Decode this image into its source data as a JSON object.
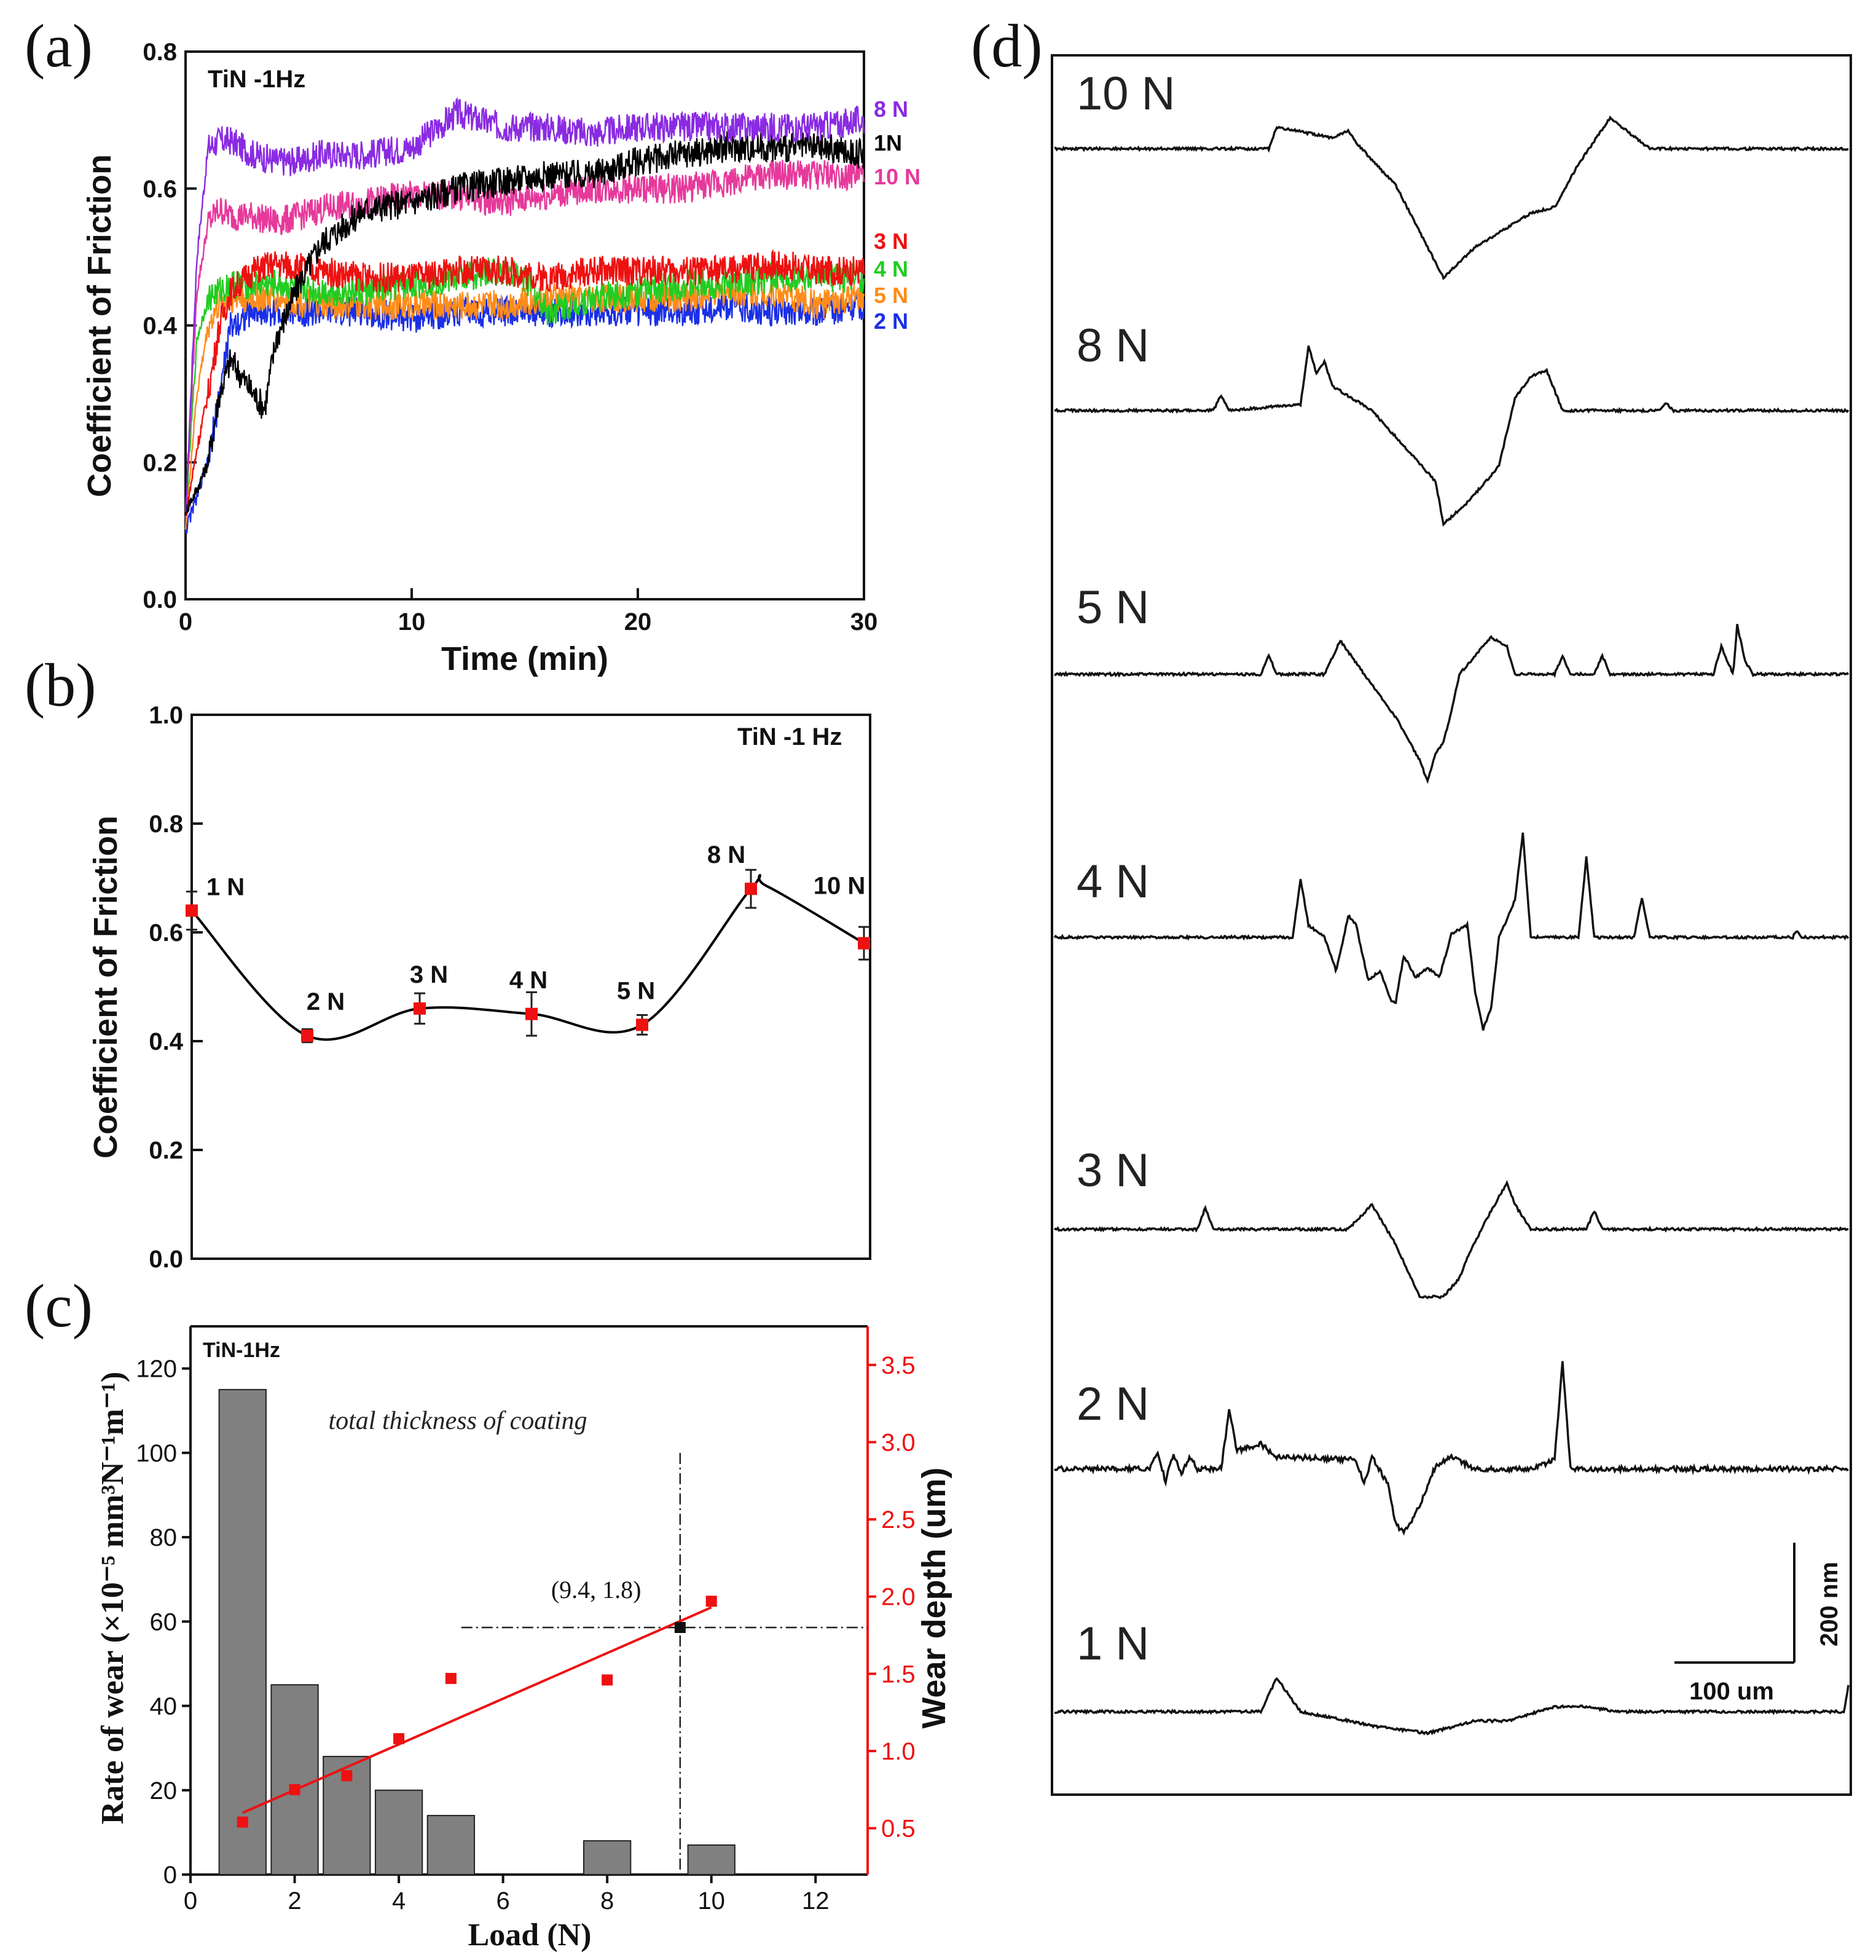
{
  "chart_data": [
    {
      "panel": "(a)",
      "type": "line",
      "tag": "TiN -1Hz",
      "xlabel": "Time (min)",
      "ylabel": "Coefficient of Friction",
      "xlim": [
        0,
        30
      ],
      "ylim": [
        0,
        0.8
      ],
      "xticks": [
        "0",
        "10",
        "20",
        "30"
      ],
      "yticks": [
        "0.0",
        "0.2",
        "0.4",
        "0.6",
        "0.8"
      ],
      "series": [
        {
          "name": "8 N",
          "color": "#8a2be2",
          "t": [
            0,
            0.5,
            1,
            1.5,
            2,
            3,
            4,
            5,
            6,
            8,
            10,
            12,
            14,
            16,
            18,
            20,
            22,
            24,
            26,
            28,
            30
          ],
          "cof": [
            0.12,
            0.5,
            0.66,
            0.67,
            0.67,
            0.65,
            0.64,
            0.64,
            0.65,
            0.65,
            0.66,
            0.71,
            0.69,
            0.69,
            0.68,
            0.69,
            0.69,
            0.69,
            0.69,
            0.69,
            0.7
          ]
        },
        {
          "name": "1N",
          "color": "#000000",
          "t": [
            0,
            0.5,
            1,
            1.5,
            2,
            3,
            3.5,
            4,
            5,
            6,
            8,
            10,
            12,
            14,
            16,
            18,
            20,
            22,
            24,
            26,
            28,
            30
          ],
          "cof": [
            0.13,
            0.16,
            0.2,
            0.3,
            0.35,
            0.3,
            0.28,
            0.38,
            0.46,
            0.52,
            0.57,
            0.58,
            0.6,
            0.61,
            0.62,
            0.62,
            0.64,
            0.65,
            0.66,
            0.66,
            0.66,
            0.65
          ]
        },
        {
          "name": "10 N",
          "color": "#e6399b",
          "t": [
            0,
            0.5,
            1,
            1.5,
            2,
            3,
            4,
            5,
            6,
            8,
            10,
            12,
            14,
            16,
            18,
            20,
            22,
            24,
            26,
            28,
            30
          ],
          "cof": [
            0.12,
            0.45,
            0.55,
            0.57,
            0.56,
            0.56,
            0.55,
            0.56,
            0.57,
            0.58,
            0.59,
            0.59,
            0.58,
            0.59,
            0.6,
            0.6,
            0.6,
            0.61,
            0.62,
            0.62,
            0.62
          ]
        },
        {
          "name": "3 N",
          "color": "#ee1111",
          "t": [
            0,
            0.5,
            1,
            1.5,
            2,
            3,
            4,
            6,
            8,
            10,
            12,
            14,
            16,
            18,
            20,
            22,
            24,
            26,
            28,
            30
          ],
          "cof": [
            0.12,
            0.22,
            0.3,
            0.4,
            0.45,
            0.48,
            0.49,
            0.48,
            0.47,
            0.47,
            0.48,
            0.48,
            0.47,
            0.48,
            0.48,
            0.48,
            0.48,
            0.49,
            0.48,
            0.48
          ]
        },
        {
          "name": "4 N",
          "color": "#22cc22",
          "t": [
            0,
            0.5,
            1,
            1.5,
            2,
            3,
            4,
            6,
            8,
            10,
            12,
            14,
            15,
            16,
            18,
            20,
            22,
            24,
            26,
            28,
            30
          ],
          "cof": [
            0.12,
            0.38,
            0.44,
            0.45,
            0.46,
            0.46,
            0.46,
            0.45,
            0.45,
            0.46,
            0.47,
            0.48,
            0.47,
            0.42,
            0.44,
            0.45,
            0.46,
            0.46,
            0.47,
            0.47,
            0.47
          ]
        },
        {
          "name": "5 N",
          "color": "#ff8c1a",
          "t": [
            0,
            0.5,
            1,
            1.5,
            2,
            3,
            4,
            6,
            8,
            10,
            12,
            14,
            16,
            18,
            20,
            22,
            24,
            26,
            28,
            30
          ],
          "cof": [
            0.11,
            0.3,
            0.4,
            0.43,
            0.44,
            0.44,
            0.44,
            0.43,
            0.43,
            0.43,
            0.43,
            0.43,
            0.44,
            0.44,
            0.44,
            0.44,
            0.45,
            0.45,
            0.43,
            0.44
          ]
        },
        {
          "name": "2 N",
          "color": "#1a2fe6",
          "t": [
            0,
            0.5,
            1,
            1.5,
            2,
            3,
            4,
            6,
            8,
            10,
            12,
            14,
            16,
            18,
            20,
            22,
            24,
            26,
            28,
            30
          ],
          "cof": [
            0.1,
            0.15,
            0.2,
            0.3,
            0.4,
            0.42,
            0.42,
            0.42,
            0.42,
            0.41,
            0.42,
            0.42,
            0.42,
            0.42,
            0.42,
            0.42,
            0.43,
            0.42,
            0.42,
            0.43
          ]
        }
      ]
    },
    {
      "panel": "(b)",
      "type": "scatter",
      "tag": "TiN -1 Hz",
      "ylabel": "Coefficient of Friction",
      "ylim": [
        0,
        1.0
      ],
      "yticks": [
        "0.0",
        "0.2",
        "0.4",
        "0.6",
        "0.8",
        "1.0"
      ],
      "points": [
        {
          "label": "1 N",
          "cof": 0.64,
          "err": 0.035
        },
        {
          "label": "2 N",
          "cof": 0.41,
          "err": 0.012
        },
        {
          "label": "3 N",
          "cof": 0.46,
          "err": 0.028
        },
        {
          "label": "4 N",
          "cof": 0.45,
          "err": 0.04
        },
        {
          "label": "5 N",
          "cof": 0.43,
          "err": 0.018
        },
        {
          "label": "8 N",
          "cof": 0.68,
          "err": 0.035
        },
        {
          "label": "10 N",
          "cof": 0.58,
          "err": 0.03
        }
      ],
      "marker_color": "#e11",
      "fit_color": "#000"
    },
    {
      "panel": "(c)",
      "type": "bar",
      "tag": "TiN-1Hz",
      "xlabel": "Load (N)",
      "ylabel": "Rate of wear",
      "ylabel_unit": "(×10⁻⁵ mm³N⁻¹m⁻¹)",
      "y2label": "Wear depth (um)",
      "xlim": [
        0,
        13
      ],
      "ylim": [
        0,
        130
      ],
      "y2lim": [
        0.2,
        3.75
      ],
      "xticks": [
        "0",
        "2",
        "4",
        "6",
        "8",
        "10",
        "12"
      ],
      "yticks": [
        "0",
        "20",
        "40",
        "60",
        "80",
        "100",
        "120"
      ],
      "y2ticks": [
        "0.5",
        "1.0",
        "1.5",
        "2.0",
        "2.5",
        "3.0",
        "3.5"
      ],
      "bars": [
        {
          "load": 1,
          "rate": 115
        },
        {
          "load": 2,
          "rate": 45
        },
        {
          "load": 3,
          "rate": 28
        },
        {
          "load": 4,
          "rate": 20
        },
        {
          "load": 5,
          "rate": 14
        },
        {
          "load": 8,
          "rate": 8
        },
        {
          "load": 10,
          "rate": 7
        }
      ],
      "depth_points": [
        {
          "load": 1,
          "depth": 0.54
        },
        {
          "load": 2,
          "depth": 0.75
        },
        {
          "load": 3,
          "depth": 0.84
        },
        {
          "load": 4,
          "depth": 1.08
        },
        {
          "load": 5,
          "depth": 1.47
        },
        {
          "load": 8,
          "depth": 1.46
        },
        {
          "load": 10,
          "depth": 1.97
        }
      ],
      "fit_line": {
        "x": [
          1,
          10
        ],
        "depth": [
          0.6,
          1.93
        ]
      },
      "threshold_point": {
        "load": 9.4,
        "depth": 1.8,
        "label": "(9.4, 1.8)"
      },
      "annotation": "total thickness of coating",
      "bar_color": "#808080",
      "depth_color": "#e11"
    },
    {
      "panel": "(d)",
      "type": "line",
      "profiles": [
        "10 N",
        "8 N",
        "5 N",
        "4 N",
        "3 N",
        "2 N",
        "1 N"
      ],
      "scale_vertical": "200 nm",
      "scale_horizontal": "100 um"
    }
  ]
}
